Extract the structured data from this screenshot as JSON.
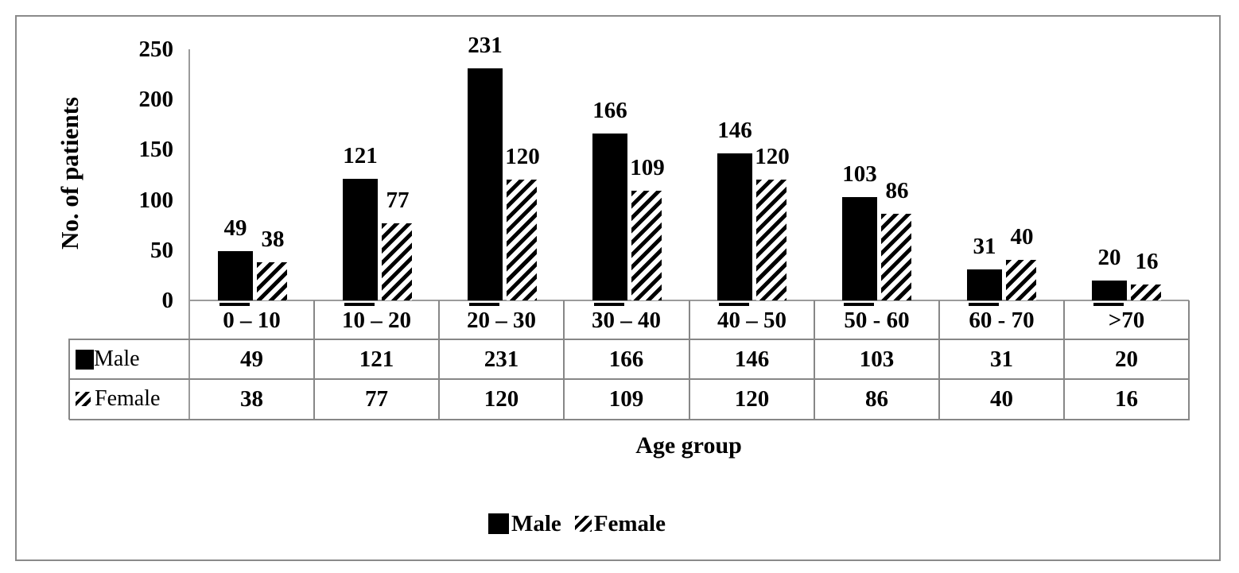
{
  "chart_data": {
    "type": "bar",
    "title": "",
    "categories": [
      "0 – 10",
      "10 – 20",
      "20 – 30",
      "30 – 40",
      "40 – 50",
      "50 - 60",
      "60 - 70",
      ">70"
    ],
    "series": [
      {
        "name": "Male",
        "values": [
          49,
          121,
          231,
          166,
          146,
          103,
          31,
          20
        ],
        "fill": "solid-black"
      },
      {
        "name": "Female",
        "values": [
          38,
          77,
          120,
          109,
          120,
          86,
          40,
          16
        ],
        "fill": "diagonal-hatch"
      }
    ],
    "xlabel": "Age group",
    "ylabel": "No. of patients",
    "ylim": [
      0,
      250
    ],
    "yticks": [
      0,
      50,
      100,
      150,
      200,
      250
    ],
    "grid": false,
    "legend_position": "bottom",
    "data_table_shown": true
  },
  "colors": {
    "bar_male": "#000000",
    "bar_female_hatch": "#000000",
    "text": "#000000",
    "table_border": "#878787",
    "axis_line": "#9b9b9b",
    "frame_border": "#8a8a8a",
    "background": "#ffffff"
  }
}
